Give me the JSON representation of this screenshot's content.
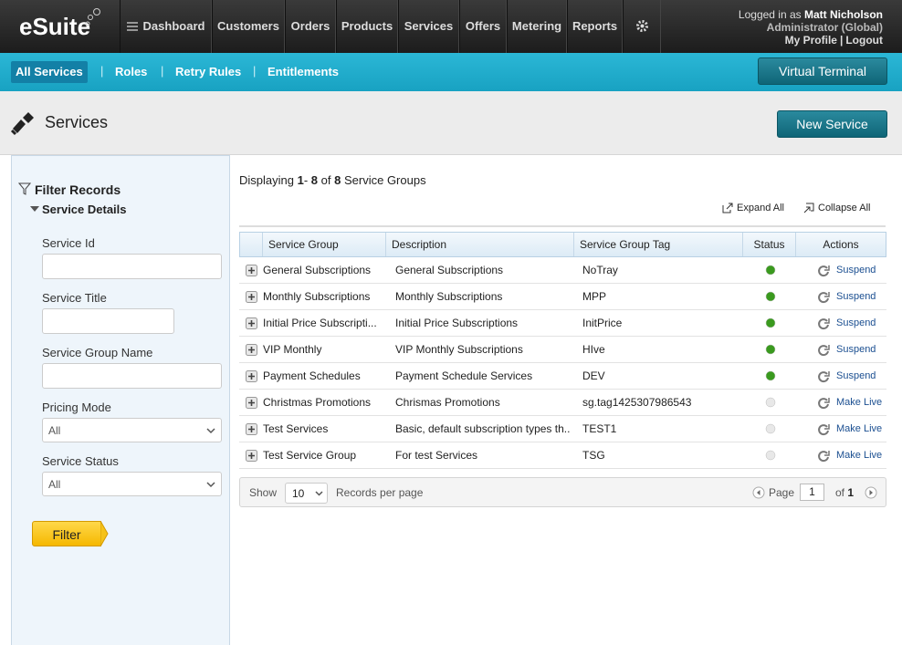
{
  "header": {
    "logo": "eSuite",
    "nav": [
      "Dashboard",
      "Customers",
      "Orders",
      "Products",
      "Services",
      "Offers",
      "Metering",
      "Reports"
    ],
    "user": {
      "logged_in_as": "Logged in as",
      "name": "Matt Nicholson",
      "role": "Administrator (Global)",
      "my_profile": "My Profile",
      "logout": "Logout"
    }
  },
  "subnav": {
    "tabs": [
      "All Services",
      "Roles",
      "Retry Rules",
      "Entitlements"
    ],
    "virtual_terminal": "Virtual Terminal"
  },
  "page": {
    "title": "Services",
    "new_button": "New Service"
  },
  "filter": {
    "title": "Filter Records",
    "section": "Service Details",
    "text_fields": [
      "Service Id",
      "Service Title",
      "Service Group Name"
    ],
    "select_fields": [
      {
        "label": "Pricing Mode",
        "value": "All"
      },
      {
        "label": "Service Status",
        "value": "All"
      }
    ],
    "button": "Filter"
  },
  "results": {
    "summary": {
      "prefix": "Displaying",
      "start": 1,
      "end": 8,
      "of": "of",
      "total": 8,
      "suffix": "Service Groups"
    },
    "expand_all": "Expand All",
    "collapse_all": "Collapse All",
    "table": {
      "columns": [
        "Service Group",
        "Description",
        "Service Group Tag",
        "Status",
        "Actions"
      ],
      "rows": [
        {
          "group": "General Subscriptions",
          "description": "General Subscriptions",
          "tag": "NoTray",
          "status_color": "#3a9a1e",
          "action": "Suspend"
        },
        {
          "group": "Monthly Subscriptions",
          "description": "Monthly Subscriptions",
          "tag": "MPP",
          "status_color": "#3a9a1e",
          "action": "Suspend"
        },
        {
          "group": "Initial Price Subscripti...",
          "description": "Initial Price Subscriptions",
          "tag": "InitPrice",
          "status_color": "#3a9a1e",
          "action": "Suspend"
        },
        {
          "group": "VIP Monthly",
          "description": "VIP Monthly Subscriptions",
          "tag": "HIve",
          "status_color": "#3a9a1e",
          "action": "Suspend"
        },
        {
          "group": "Payment Schedules",
          "description": "Payment Schedule Services",
          "tag": "DEV",
          "status_color": "#3a9a1e",
          "action": "Suspend"
        },
        {
          "group": "Christmas Promotions",
          "description": "Chrismas Promotions",
          "tag": "sg.tag1425307986543",
          "status_color": "#e8e8e8",
          "action": "Make Live"
        },
        {
          "group": "Test Services",
          "description": "Basic, default subscription types th...",
          "tag": "TEST1",
          "status_color": "#e8e8e8",
          "action": "Make Live"
        },
        {
          "group": "Test Service Group",
          "description": "For test Services",
          "tag": "TSG",
          "status_color": "#e8e8e8",
          "action": "Make Live"
        }
      ]
    },
    "pager": {
      "show": "Show",
      "per_page": 10,
      "records_per_page": "Records per page",
      "page_label": "Page",
      "page": 1,
      "of": "of",
      "pages": 1
    }
  }
}
